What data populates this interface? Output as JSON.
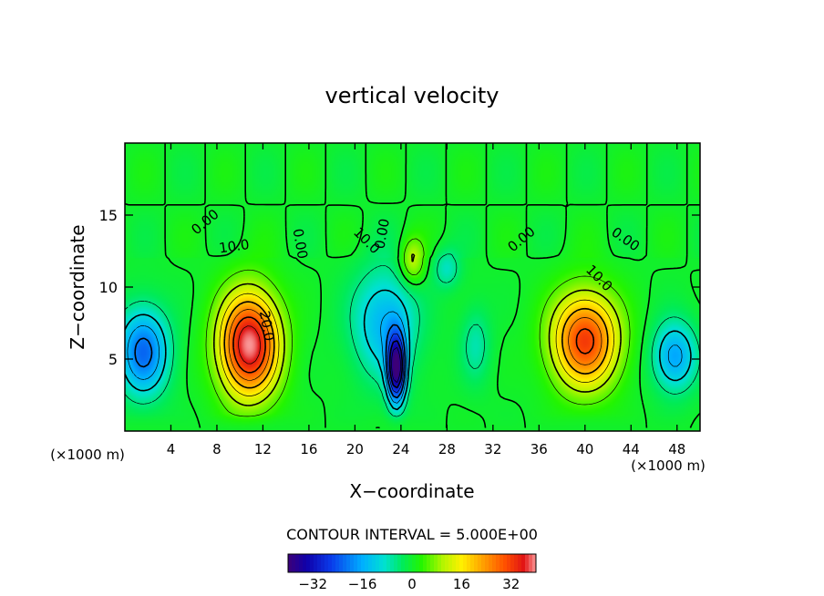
{
  "chart_data": {
    "type": "heatmap",
    "title": "vertical velocity",
    "xlabel": "X−coordinate",
    "ylabel": "Z−coordinate",
    "x_unit_left": "(×1000 m)",
    "x_unit_right": "(×1000 m)",
    "xlim": [
      0,
      50
    ],
    "ylim": [
      0,
      20
    ],
    "x_ticks": [
      4,
      8,
      12,
      16,
      20,
      24,
      28,
      32,
      36,
      40,
      44,
      48
    ],
    "x_tick_labels": [
      "4",
      "8",
      "12",
      "16",
      "20",
      "24",
      "28",
      "32",
      "36",
      "40",
      "44",
      "48"
    ],
    "y_ticks": [
      5,
      10,
      15
    ],
    "y_tick_labels": [
      "5",
      "10",
      "15"
    ],
    "contour_interval_text": "CONTOUR INTERVAL = 5.000E+00",
    "colorbar": {
      "range": [
        -40,
        40
      ],
      "ticks": [
        -32,
        -16,
        0,
        16,
        32
      ],
      "tick_labels": [
        "−32",
        "−16",
        "0",
        "16",
        "32"
      ]
    },
    "contour_labels": [
      {
        "text": "0.00",
        "x": 7.0,
        "z": 14.5,
        "angle": -40
      },
      {
        "text": "10.0",
        "x": 9.5,
        "z": 12.8,
        "angle": -8
      },
      {
        "text": "20.0",
        "x": 12.3,
        "z": 7.3,
        "angle": 80
      },
      {
        "text": "0.00",
        "x": 15.2,
        "z": 13.0,
        "angle": 80
      },
      {
        "text": "10.0",
        "x": 21.0,
        "z": 13.2,
        "angle": 45
      },
      {
        "text": "0.00",
        "x": 22.4,
        "z": 13.7,
        "angle": -80
      },
      {
        "text": "0.00",
        "x": 34.5,
        "z": 13.3,
        "angle": -40
      },
      {
        "text": "0.00",
        "x": 43.5,
        "z": 13.3,
        "angle": 35
      },
      {
        "text": "10.0",
        "x": 41.2,
        "z": 10.6,
        "angle": 45
      }
    ],
    "field_components": [
      {
        "name": "updraft-west",
        "x": 10.8,
        "z": 6.0,
        "sx": 2.6,
        "sz": 3.6,
        "amp": 40
      },
      {
        "name": "updraft-east",
        "x": 40.0,
        "z": 6.3,
        "sx": 2.9,
        "sz": 3.3,
        "amp": 32
      },
      {
        "name": "downdraft-center",
        "x": 23.6,
        "z": 4.3,
        "sx": 0.8,
        "sz": 2.4,
        "amp": -36
      },
      {
        "name": "downdraft-center-broad",
        "x": 22.6,
        "z": 7.5,
        "sx": 2.8,
        "sz": 3.8,
        "amp": -15
      },
      {
        "name": "downdraft-west-edge",
        "x": 1.6,
        "z": 5.5,
        "sx": 2.2,
        "sz": 3.0,
        "amp": -22
      },
      {
        "name": "downdraft-east-edge",
        "x": 47.8,
        "z": 5.2,
        "sx": 1.9,
        "sz": 2.4,
        "amp": -17
      },
      {
        "name": "downdraft-right",
        "x": 30.5,
        "z": 6.0,
        "sx": 1.3,
        "sz": 2.6,
        "amp": -7
      },
      {
        "name": "cell-upper-center",
        "x": 25.0,
        "z": 11.8,
        "sx": 1.1,
        "sz": 1.6,
        "amp": 12
      },
      {
        "name": "sink-upper-center",
        "x": 28.0,
        "z": 11.3,
        "sx": 1.2,
        "sz": 1.4,
        "amp": -8
      }
    ],
    "field_range": [
      -40,
      40
    ]
  }
}
